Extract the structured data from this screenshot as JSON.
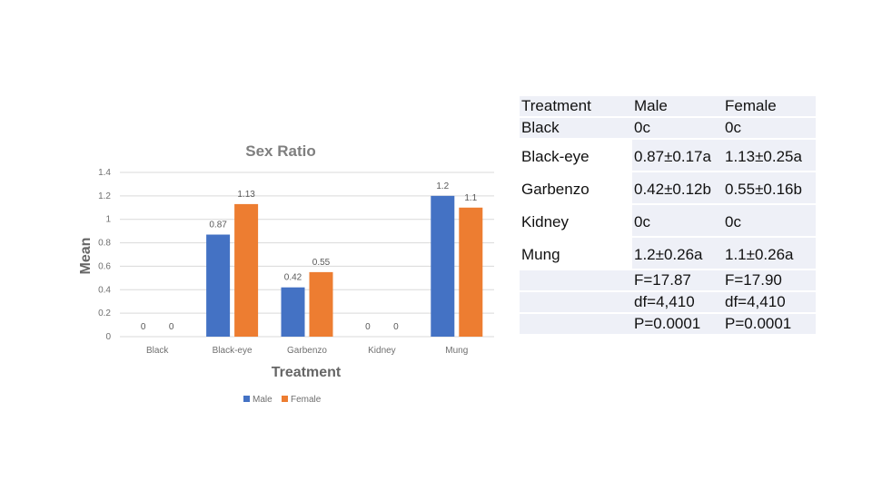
{
  "chart_data": {
    "type": "bar",
    "title": "Sex Ratio",
    "xlabel": "Treatment",
    "ylabel": "Mean",
    "categories": [
      "Black",
      "Black-eye",
      "Garbenzo",
      "Kidney",
      "Mung"
    ],
    "series": [
      {
        "name": "Male",
        "values": [
          0,
          0.87,
          0.42,
          0,
          1.2
        ],
        "labels": [
          "0",
          "0.87",
          "0.42",
          "0",
          "1.2"
        ],
        "color": "#4472c4"
      },
      {
        "name": "Female",
        "values": [
          0,
          1.13,
          0.55,
          0,
          1.1
        ],
        "labels": [
          "0",
          "1.13",
          "0.55",
          "0",
          "1.1"
        ],
        "color": "#ed7d31"
      }
    ],
    "ylim": [
      0,
      1.4
    ],
    "yticks": [
      "0",
      "0.2",
      "0.4",
      "0.6",
      "0.8",
      "1",
      "1.2",
      "1.4"
    ],
    "grid": true,
    "legend": "bottom"
  },
  "table": {
    "rows": [
      {
        "cells": [
          "Treatment",
          "Male",
          "Female"
        ],
        "style": "row-head"
      },
      {
        "cells": [
          "Black",
          "0c",
          "0c"
        ],
        "style": "row-sub"
      },
      {
        "cells": [
          "Black-eye",
          "0.87±0.17a",
          "1.13±0.25a"
        ],
        "style": "row-data"
      },
      {
        "cells": [
          "Garbenzo",
          "0.42±0.12b",
          "0.55±0.16b"
        ],
        "style": "row-data"
      },
      {
        "cells": [
          "Kidney",
          "0c",
          "0c"
        ],
        "style": "row-data"
      },
      {
        "cells": [
          "Mung",
          "1.2±0.26a",
          "1.1±0.26a"
        ],
        "style": "row-data"
      },
      {
        "cells": [
          "",
          "F=17.87",
          "F=17.90"
        ],
        "style": "row-sub"
      },
      {
        "cells": [
          "",
          "df=4,410",
          "df=4,410"
        ],
        "style": "row-sub"
      },
      {
        "cells": [
          "",
          "P=0.0001",
          "P=0.0001"
        ],
        "style": "row-sub"
      }
    ]
  }
}
